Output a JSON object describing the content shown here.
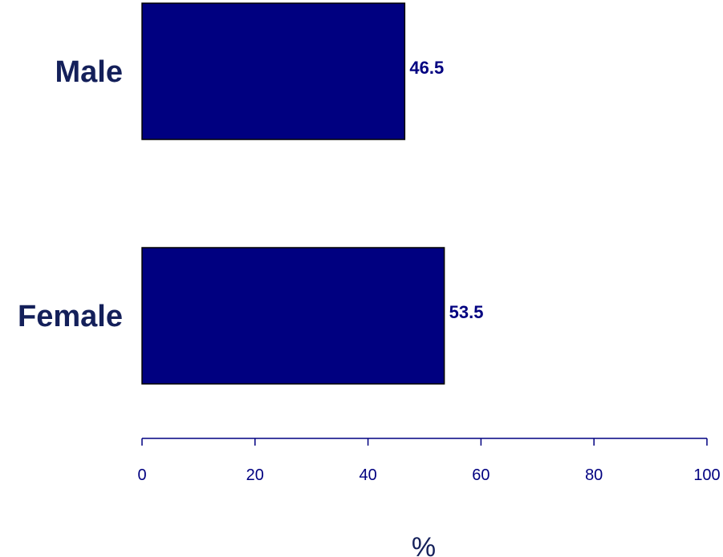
{
  "chart_data": {
    "type": "bar",
    "orientation": "horizontal",
    "categories": [
      "Male",
      "Female"
    ],
    "values": [
      46.5,
      53.5
    ],
    "value_labels": [
      "46.5",
      "53.5"
    ],
    "xlabel": "%",
    "ylabel": "",
    "xlim": [
      0,
      100
    ],
    "x_ticks": [
      0,
      20,
      40,
      60,
      80,
      100
    ],
    "x_tick_labels": [
      "0",
      "20",
      "40",
      "60",
      "80",
      "100"
    ],
    "grid": false,
    "legend": "none"
  },
  "colors": {
    "bar_fill": "#000080",
    "bar_stroke": "#000000",
    "text": "#14205A",
    "axis": "#000080"
  }
}
